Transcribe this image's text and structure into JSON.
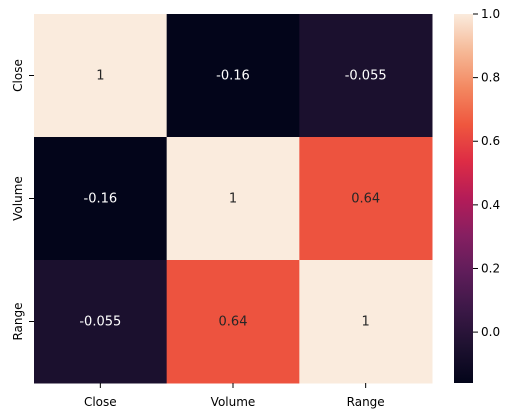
{
  "chart_data": {
    "type": "heatmap",
    "rows": [
      "Close",
      "Volume",
      "Range"
    ],
    "columns": [
      "Close",
      "Volume",
      "Range"
    ],
    "values": [
      [
        1,
        -0.16,
        -0.055
      ],
      [
        -0.16,
        1,
        0.64
      ],
      [
        -0.055,
        0.64,
        1
      ]
    ],
    "annotations": [
      [
        "1",
        "-0.16",
        "-0.055"
      ],
      [
        "-0.16",
        "1",
        "0.64"
      ],
      [
        "-0.055",
        "0.64",
        "1"
      ]
    ],
    "colorbar": {
      "ticks": [
        "1.0",
        "0.8",
        "0.6",
        "0.4",
        "0.2",
        "0.0"
      ],
      "vmin": -0.16,
      "vmax": 1.0,
      "colormap": "rocket"
    },
    "title": "",
    "xlabel": "",
    "ylabel": ""
  }
}
